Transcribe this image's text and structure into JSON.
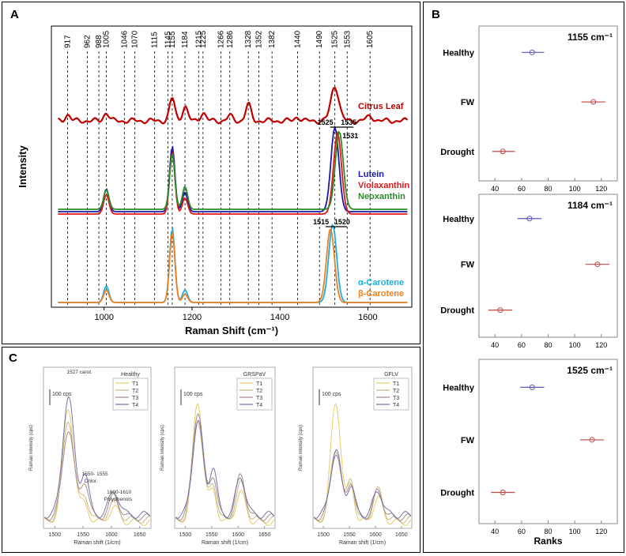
{
  "panels": {
    "a": "A",
    "b": "B",
    "c": "C"
  },
  "chart_data": [
    {
      "id": "A",
      "type": "line",
      "xlabel": "Raman Shift (cm⁻¹)",
      "ylabel": "Intensity",
      "xlim": [
        880,
        1700
      ],
      "xticks": [
        1000,
        1200,
        1400,
        1600
      ],
      "peak_lines": [
        917,
        962,
        988,
        1005,
        1046,
        1070,
        1115,
        1145,
        1155,
        1184,
        1215,
        1225,
        1266,
        1286,
        1328,
        1352,
        1382,
        1440,
        1490,
        1525,
        1553,
        1605
      ],
      "brackets": [
        {
          "left": "1525",
          "right": "1535",
          "extra": "1531"
        },
        {
          "left": "1515",
          "right": "1520"
        }
      ],
      "series": [
        {
          "name": "Citrus Leaf",
          "color": "#c00000",
          "peaks": [
            [
              917,
              0.15
            ],
            [
              1005,
              0.2
            ],
            [
              1155,
              0.55
            ],
            [
              1184,
              0.35
            ],
            [
              1225,
              0.2
            ],
            [
              1286,
              0.12
            ],
            [
              1328,
              0.4
            ],
            [
              1440,
              0.1
            ],
            [
              1525,
              0.85
            ],
            [
              1605,
              0.1
            ]
          ]
        },
        {
          "name": "Lutein",
          "color": "#1a1aa6",
          "peaks": [
            [
              1005,
              0.35
            ],
            [
              1155,
              1.0
            ],
            [
              1184,
              0.3
            ],
            [
              1525,
              1.3
            ]
          ]
        },
        {
          "name": "Violaxanthin",
          "color": "#e01818",
          "peaks": [
            [
              1005,
              0.3
            ],
            [
              1155,
              0.95
            ],
            [
              1184,
              0.25
            ],
            [
              1531,
              1.25
            ]
          ]
        },
        {
          "name": "Neoxanthin",
          "color": "#2a8a2a",
          "peaks": [
            [
              1005,
              0.3
            ],
            [
              1155,
              0.85
            ],
            [
              1184,
              0.35
            ],
            [
              1535,
              1.2
            ]
          ]
        },
        {
          "name": "α-Carotene",
          "color": "#1ab0e0",
          "peaks": [
            [
              1005,
              0.2
            ],
            [
              1155,
              0.9
            ],
            [
              1184,
              0.15
            ],
            [
              1520,
              0.95
            ]
          ]
        },
        {
          "name": "β-Carotene",
          "color": "#f08020",
          "peaks": [
            [
              1005,
              0.15
            ],
            [
              1155,
              0.85
            ],
            [
              1184,
              0.1
            ],
            [
              1515,
              0.9
            ]
          ]
        }
      ]
    },
    {
      "id": "B",
      "type": "scatter",
      "xlabel": "Ranks",
      "xlim": [
        28,
        132
      ],
      "xticks": [
        40,
        60,
        80,
        100,
        120
      ],
      "categories": [
        "Healthy",
        "FW",
        "Drought"
      ],
      "subplots": [
        {
          "title": "1155 cm⁻¹",
          "means": [
            68,
            114,
            46
          ],
          "ci": [
            [
              60,
              77
            ],
            [
              105,
              123
            ],
            [
              38,
              55
            ]
          ]
        },
        {
          "title": "1184 cm⁻¹",
          "means": [
            66,
            117,
            44
          ],
          "ci": [
            [
              57,
              75
            ],
            [
              108,
              126
            ],
            [
              35,
              53
            ]
          ]
        },
        {
          "title": "1525 cm⁻¹",
          "means": [
            68,
            113,
            46
          ],
          "ci": [
            [
              59,
              77
            ],
            [
              104,
              122
            ],
            [
              37,
              55
            ]
          ]
        }
      ]
    },
    {
      "id": "C",
      "type": "line",
      "xlabel": "Raman shift (1/cm)",
      "ylabel": "Raman intensity (cps)",
      "xlim": [
        1480,
        1670
      ],
      "xticks": [
        1500,
        1550,
        1600,
        1650
      ],
      "scale_bar": "100 cps",
      "legend": [
        "T1",
        "T2",
        "T3",
        "T4"
      ],
      "colors": [
        "#e6cc6a",
        "#c9b886",
        "#a88c8c",
        "#7a72a8"
      ],
      "annotations": {
        "peak1": "1527 carot.",
        "peak2a": "1550- 1555",
        "peak2b": "Chlor.",
        "peak3a": "1600-1610",
        "peak3b": "Polyphenols"
      },
      "subplots": [
        {
          "title": "Healthy",
          "peak1": [
            0.95,
            0.85,
            0.75,
            1.0
          ],
          "peak2": [
            0.15,
            0.2,
            0.3,
            0.35
          ],
          "peak3": [
            0.12,
            0.15,
            0.18,
            0.2
          ]
        },
        {
          "title": "GRSPaV",
          "peak1": [
            1.0,
            0.85,
            0.9,
            0.8
          ],
          "peak2": [
            0.25,
            0.3,
            0.35,
            0.4
          ],
          "peak3": [
            0.25,
            0.3,
            0.35,
            0.32
          ]
        },
        {
          "title": "GFLV",
          "peak1": [
            1.0,
            0.6,
            0.55,
            0.55
          ],
          "peak2": [
            0.3,
            0.35,
            0.3,
            0.25
          ],
          "peak3": [
            0.2,
            0.25,
            0.22,
            0.2
          ]
        }
      ]
    }
  ]
}
